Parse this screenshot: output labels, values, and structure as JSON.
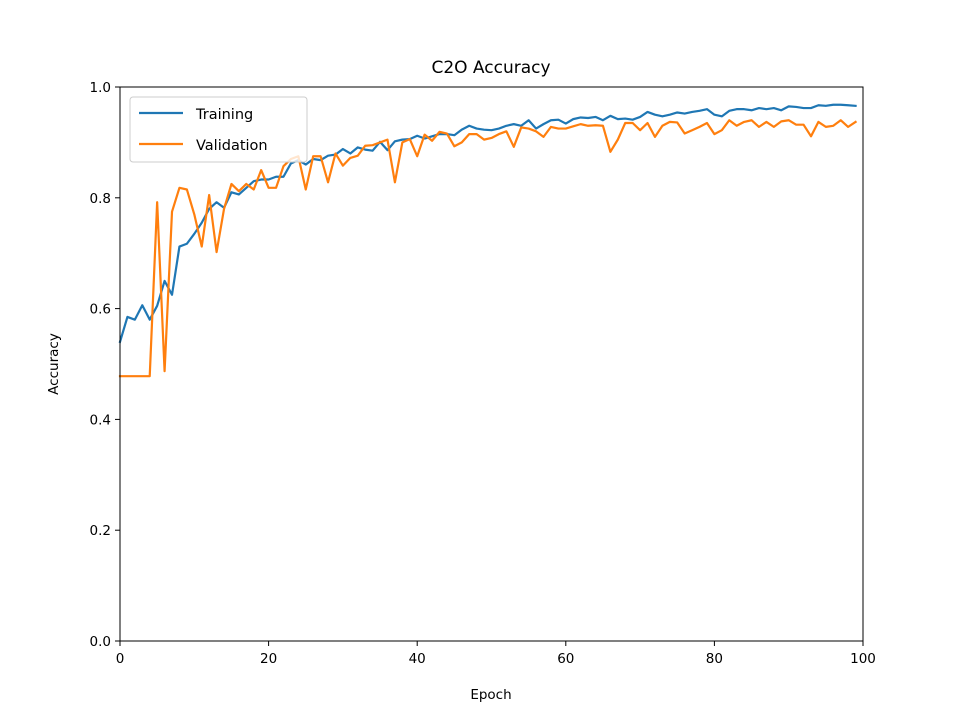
{
  "chart_data": {
    "type": "line",
    "title": "C2O Accuracy",
    "xlabel": "Epoch",
    "ylabel": "Accuracy",
    "xlim": [
      0,
      100
    ],
    "ylim": [
      0.0,
      1.0
    ],
    "xticks": [
      "0",
      "20",
      "40",
      "60",
      "80",
      "100"
    ],
    "yticks": [
      "0.0",
      "0.2",
      "0.4",
      "0.6",
      "0.8",
      "1.0"
    ],
    "grid": false,
    "legend_position": "upper-left",
    "series": [
      {
        "name": "Training",
        "color": "#1f77b4",
        "values": [
          0.54,
          0.585,
          0.58,
          0.606,
          0.58,
          0.605,
          0.65,
          0.625,
          0.712,
          0.717,
          0.735,
          0.755,
          0.78,
          0.792,
          0.782,
          0.81,
          0.806,
          0.818,
          0.83,
          0.833,
          0.833,
          0.838,
          0.838,
          0.862,
          0.868,
          0.86,
          0.87,
          0.868,
          0.876,
          0.878,
          0.888,
          0.88,
          0.891,
          0.887,
          0.885,
          0.901,
          0.886,
          0.902,
          0.905,
          0.906,
          0.912,
          0.907,
          0.911,
          0.915,
          0.915,
          0.913,
          0.923,
          0.93,
          0.925,
          0.923,
          0.922,
          0.925,
          0.93,
          0.933,
          0.93,
          0.94,
          0.925,
          0.933,
          0.94,
          0.941,
          0.934,
          0.942,
          0.945,
          0.944,
          0.946,
          0.94,
          0.948,
          0.942,
          0.943,
          0.941,
          0.946,
          0.955,
          0.95,
          0.947,
          0.95,
          0.954,
          0.952,
          0.955,
          0.957,
          0.96,
          0.95,
          0.947,
          0.957,
          0.96,
          0.96,
          0.958,
          0.962,
          0.96,
          0.962,
          0.958,
          0.965,
          0.964,
          0.962,
          0.962,
          0.967,
          0.966,
          0.968,
          0.968,
          0.967,
          0.966
        ]
      },
      {
        "name": "Validation",
        "color": "#ff7f0e",
        "values": [
          0.478,
          0.478,
          0.478,
          0.478,
          0.478,
          0.792,
          0.487,
          0.775,
          0.818,
          0.815,
          0.77,
          0.712,
          0.805,
          0.702,
          0.78,
          0.825,
          0.812,
          0.825,
          0.815,
          0.85,
          0.818,
          0.818,
          0.857,
          0.87,
          0.875,
          0.815,
          0.875,
          0.875,
          0.828,
          0.88,
          0.858,
          0.872,
          0.876,
          0.894,
          0.895,
          0.9,
          0.905,
          0.828,
          0.9,
          0.906,
          0.875,
          0.914,
          0.903,
          0.919,
          0.916,
          0.893,
          0.9,
          0.915,
          0.915,
          0.905,
          0.908,
          0.915,
          0.92,
          0.892,
          0.927,
          0.925,
          0.92,
          0.91,
          0.928,
          0.925,
          0.925,
          0.929,
          0.933,
          0.93,
          0.931,
          0.93,
          0.883,
          0.905,
          0.935,
          0.935,
          0.922,
          0.935,
          0.91,
          0.93,
          0.937,
          0.936,
          0.916,
          0.922,
          0.928,
          0.935,
          0.915,
          0.922,
          0.94,
          0.93,
          0.937,
          0.94,
          0.928,
          0.937,
          0.928,
          0.938,
          0.94,
          0.932,
          0.932,
          0.911,
          0.937,
          0.928,
          0.93,
          0.94,
          0.928,
          0.937
        ]
      }
    ]
  }
}
